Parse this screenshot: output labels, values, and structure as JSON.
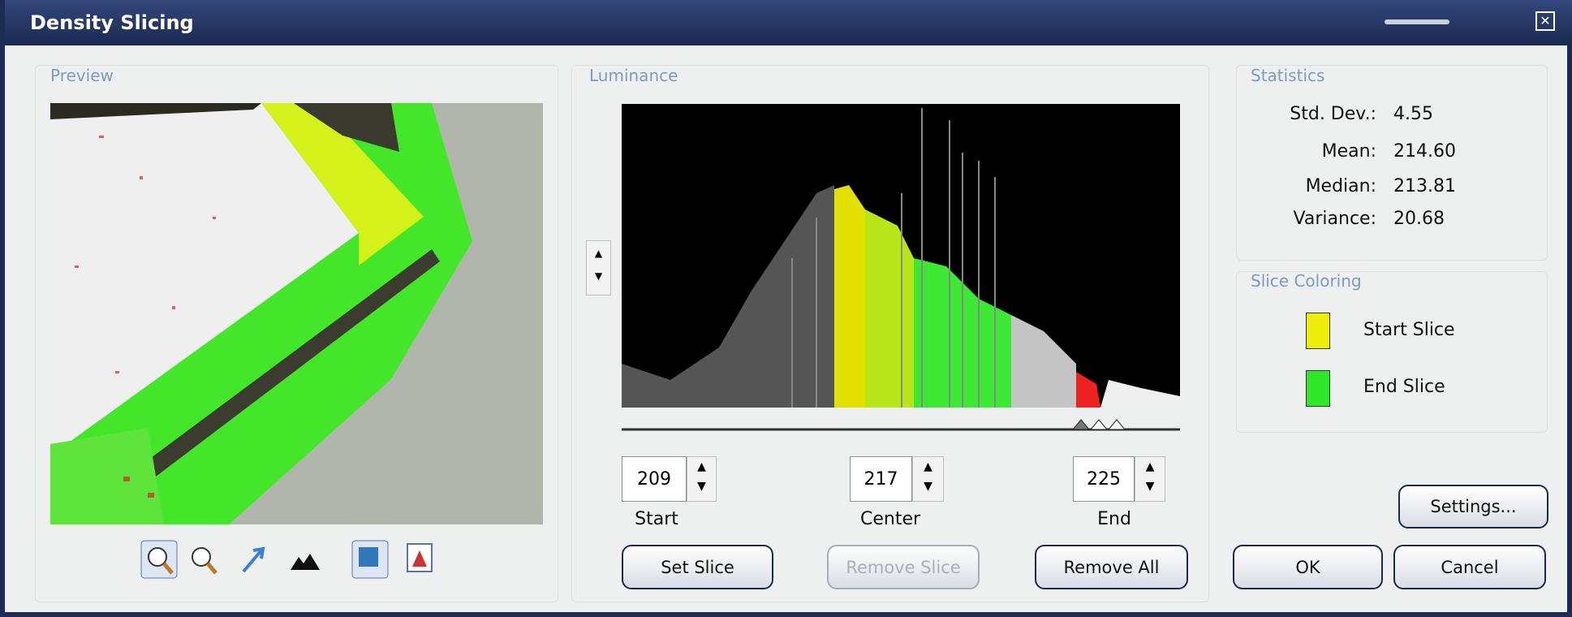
{
  "window": {
    "title": "Density Slicing"
  },
  "preview": {
    "label": "Preview"
  },
  "luminance": {
    "label": "Luminance",
    "start": {
      "value": "209",
      "label": "Start"
    },
    "center": {
      "value": "217",
      "label": "Center"
    },
    "end": {
      "value": "225",
      "label": "End"
    },
    "buttons": [
      "Set Slice",
      "Remove Slice",
      "Remove All"
    ]
  },
  "statistics": {
    "label": "Statistics",
    "rows": [
      [
        "Std. Dev.:",
        "4.55"
      ],
      [
        "Mean:",
        "214.60"
      ],
      [
        "Median:",
        "213.81"
      ],
      [
        "Variance:",
        "20.68"
      ]
    ]
  },
  "slice_coloring": {
    "label": "Slice Coloring",
    "start": "Start Slice",
    "end": "End Slice"
  },
  "buttons": {
    "settings": "Settings...",
    "ok": "OK",
    "cancel": "Cancel"
  }
}
